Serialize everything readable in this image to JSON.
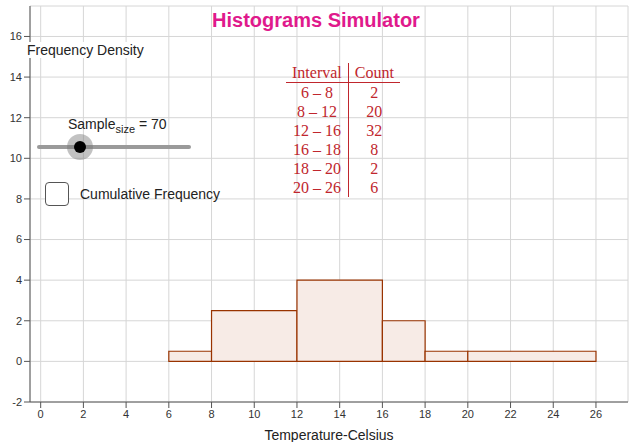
{
  "chart_data": {
    "type": "histogram",
    "title": "Histograms Simulator",
    "x_label": "Temperature-Celsius",
    "y_label": "Frequency Density",
    "bins": [
      6,
      8,
      12,
      16,
      18,
      20,
      26
    ],
    "values": [
      0.5,
      2.5,
      4,
      2,
      0.5,
      0.5
    ],
    "color": "#993300",
    "xlim": [
      -0.5,
      27.5
    ],
    "ylim": [
      -2,
      17.5
    ],
    "xticks": [
      0,
      2,
      4,
      6,
      8,
      10,
      12,
      14,
      16,
      18,
      20,
      22,
      24,
      26
    ],
    "yticks": [
      -2,
      0,
      2,
      4,
      6,
      8,
      10,
      12,
      14,
      16
    ],
    "grid": true,
    "table": {
      "header": [
        "Interval",
        "Count"
      ],
      "rows": [
        [
          "6 – 8",
          2
        ],
        [
          "8 – 12",
          20
        ],
        [
          "12 – 16",
          32
        ],
        [
          "16 – 18",
          8
        ],
        [
          "18 – 20",
          2
        ],
        [
          "20 – 26",
          6
        ]
      ]
    },
    "slider": {
      "name": "Sample",
      "subscript": "size",
      "relation": "=",
      "value": 70
    },
    "checkbox": {
      "label": "Cumulative Frequency",
      "checked": false
    }
  }
}
